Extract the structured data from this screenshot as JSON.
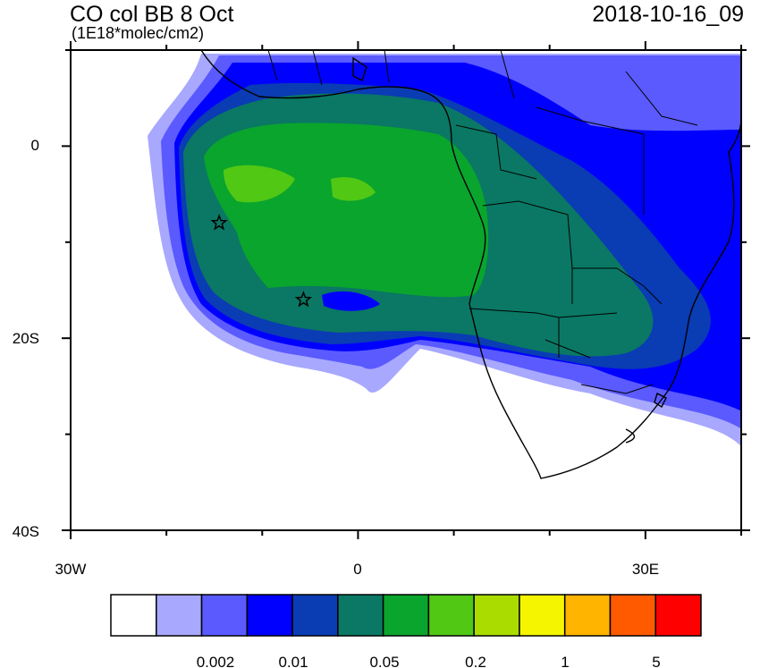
{
  "header": {
    "title": "CO col BB 8 Oct",
    "units": "(1E18*molec/cm2)",
    "timestamp": "2018-10-16_09"
  },
  "map": {
    "lat_labels": [
      "0",
      "20S",
      "40S"
    ],
    "lon_labels": [
      "30W",
      "0",
      "30E"
    ],
    "lon_range": [
      -30,
      40
    ],
    "lat_range": [
      -40,
      10
    ],
    "markers": [
      {
        "name": "star",
        "lon": -14.5,
        "lat": -8.0
      },
      {
        "name": "star",
        "lon": -5.7,
        "lat": -16.0
      }
    ]
  },
  "colorbar": {
    "colors": [
      "#ffffff",
      "#a8a8ff",
      "#5a5aff",
      "#0000ff",
      "#0a3cb4",
      "#0a7864",
      "#0aa52d",
      "#50c814",
      "#aadc00",
      "#f5f500",
      "#ffb400",
      "#ff5a00",
      "#ff0000"
    ],
    "labels": [
      "0.002",
      "0.01",
      "0.05",
      "0.2",
      "1",
      "5"
    ]
  }
}
